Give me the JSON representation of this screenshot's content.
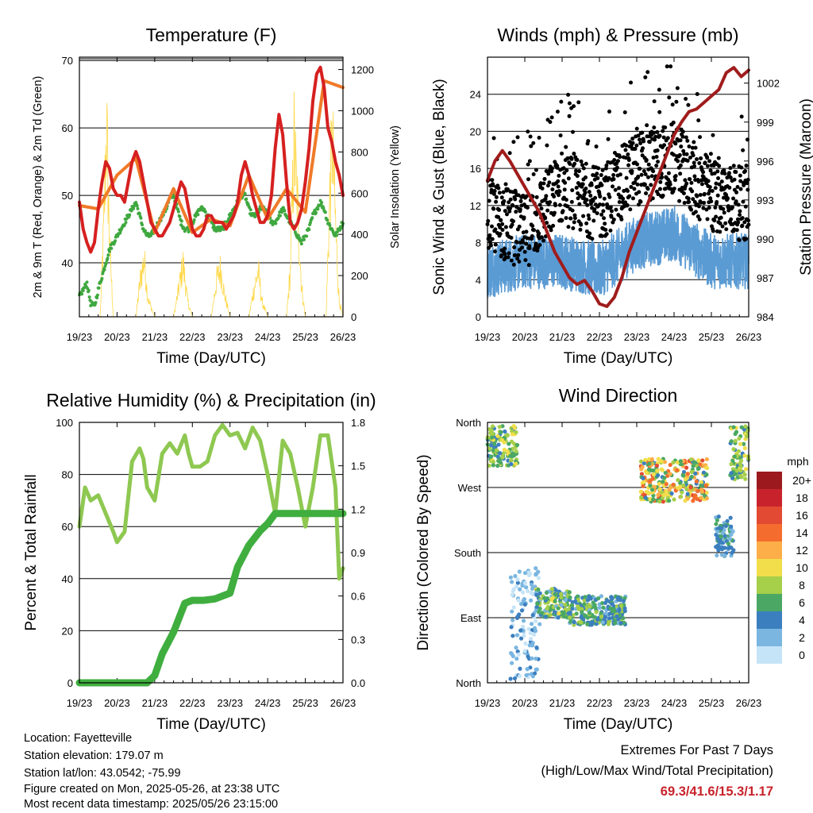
{
  "colors": {
    "temp2m": "#d62020",
    "temp9m": "#f07a28",
    "dewpoint": "#3fa83f",
    "solar": "#ffd84a",
    "wind": "#5a9bd4",
    "gust": "#000000",
    "pressure": "#a01c1c",
    "rh": "#8ec851",
    "precip": "#3fae3f",
    "extremes": "#c8232c"
  },
  "x_ticks": [
    "19/23",
    "20/23",
    "21/23",
    "22/23",
    "23/23",
    "24/23",
    "25/23",
    "26/23"
  ],
  "chart_data": [
    {
      "type": "line",
      "title": "Temperature (F)",
      "xlabel": "Time (Day/UTC)",
      "ylabel": "2m & 9m T (Red, Orange) & 2m Td (Green)",
      "ylabel_right": "Solar Insolation (Yellow)",
      "ylim": [
        32,
        70.5
      ],
      "yticks": [
        "40",
        "50",
        "60",
        "70"
      ],
      "y2lim": [
        0,
        1260
      ],
      "y2ticks": [
        "0",
        "200",
        "400",
        "600",
        "800",
        "1000",
        "1200"
      ],
      "series": [
        {
          "key": "temp2m",
          "x": [
            0,
            0.1,
            0.2,
            0.3,
            0.4,
            0.5,
            0.6,
            0.7,
            0.8,
            0.9,
            1,
            1.1,
            1.2,
            1.3,
            1.4,
            1.5,
            1.6,
            1.7,
            1.8,
            1.9,
            2,
            2.1,
            2.2,
            2.3,
            2.4,
            2.5,
            2.6,
            2.7,
            2.8,
            2.9,
            3,
            3.1,
            3.2,
            3.3,
            3.4,
            3.5,
            3.6,
            3.7,
            3.8,
            3.9,
            4,
            4.1,
            4.2,
            4.3,
            4.4,
            4.5,
            4.6,
            4.7,
            4.8,
            4.9,
            5,
            5.1,
            5.2,
            5.3,
            5.4,
            5.5,
            5.6,
            5.7,
            5.8,
            5.9,
            6,
            6.1,
            6.2,
            6.3,
            6.4,
            6.5,
            6.6,
            6.7,
            6.8,
            6.9,
            7
          ],
          "y": [
            49,
            45,
            43,
            41.6,
            43,
            48,
            52,
            55,
            54,
            51,
            50,
            50,
            49,
            52,
            55,
            56.5,
            55,
            52,
            49,
            46,
            45,
            44,
            44,
            45,
            46,
            48,
            50,
            52,
            51,
            48,
            45,
            44,
            44,
            45,
            47,
            47,
            46,
            46,
            46,
            45,
            46,
            47,
            49,
            53,
            55,
            53,
            50,
            48,
            46,
            46,
            47,
            50,
            57,
            62,
            59,
            52,
            46,
            45,
            46,
            48,
            52,
            57,
            64,
            68,
            69,
            66,
            60,
            58,
            55,
            53,
            50
          ]
        },
        {
          "key": "temp9m",
          "x": [
            0,
            0.5,
            1,
            1.5,
            2,
            2.5,
            3,
            3.5,
            4,
            4.5,
            5,
            5.5,
            6,
            6.5,
            7
          ],
          "y": [
            48.5,
            48,
            53,
            55.5,
            44.5,
            51,
            44.5,
            46.5,
            45.5,
            53,
            46.5,
            51,
            47.5,
            67,
            66
          ]
        },
        {
          "key": "dewpoint",
          "x": [
            0,
            0.2,
            0.3,
            0.4,
            0.5,
            0.6,
            0.7,
            0.8,
            0.9,
            1,
            1.1,
            1.2,
            1.3,
            1.4,
            1.5,
            1.6,
            1.7,
            1.8,
            1.9,
            2,
            2.1,
            2.2,
            2.3,
            2.4,
            2.5,
            2.6,
            2.7,
            2.8,
            2.9,
            3,
            3.1,
            3.2,
            3.3,
            3.4,
            3.5,
            3.6,
            3.7,
            3.8,
            3.9,
            4,
            4.1,
            4.2,
            4.3,
            4.4,
            4.5,
            4.6,
            4.7,
            4.8,
            4.9,
            5,
            5.1,
            5.2,
            5.3,
            5.4,
            5.5,
            5.6,
            5.7,
            5.8,
            5.9,
            6,
            6.1,
            6.2,
            6.3,
            6.4,
            6.5,
            6.6,
            6.7,
            6.8,
            6.9,
            7
          ],
          "y": [
            35,
            37,
            34,
            33.5,
            36,
            38,
            40,
            42,
            43,
            44,
            45,
            46,
            47,
            48,
            49,
            47,
            45,
            44,
            44,
            45,
            46,
            47,
            48,
            49.5,
            50,
            48,
            46,
            45,
            45,
            46,
            47,
            48,
            48,
            47,
            46,
            45,
            45,
            45,
            46,
            47,
            48,
            49,
            50,
            50,
            48,
            47,
            47,
            48,
            48,
            47,
            46,
            46,
            47,
            48,
            47,
            46,
            45,
            44,
            43,
            44,
            45,
            47,
            48,
            49,
            48,
            46,
            45,
            44,
            45,
            46
          ]
        },
        {
          "key": "solar",
          "x": [
            0,
            0.55,
            0.65,
            0.72,
            0.8,
            0.9,
            1,
            1.5,
            1.62,
            1.72,
            1.82,
            2,
            2.5,
            2.65,
            2.75,
            2.88,
            3,
            3.5,
            3.65,
            3.75,
            3.85,
            4,
            4.5,
            4.65,
            4.75,
            4.85,
            5,
            5.5,
            5.6,
            5.7,
            5.78,
            5.9,
            6,
            6.55,
            6.65,
            6.72,
            6.82,
            6.9,
            7
          ],
          "y": [
            0,
            0,
            600,
            1270,
            500,
            0,
            0,
            0,
            250,
            380,
            120,
            0,
            0,
            200,
            350,
            100,
            0,
            0,
            250,
            320,
            150,
            0,
            0,
            200,
            300,
            100,
            0,
            0,
            300,
            1150,
            800,
            200,
            0,
            0,
            800,
            1170,
            500,
            100,
            0
          ]
        }
      ]
    },
    {
      "type": "scatter",
      "title": "Winds (mph) & Pressure (mb)",
      "xlabel": "Time (Day/UTC)",
      "ylabel": "Sonic Wind & Gust (Blue, Black)",
      "ylabel_right": "Station Pressure (Maroon)",
      "ylim": [
        0,
        28
      ],
      "yticks": [
        "0",
        "4",
        "8",
        "12",
        "16",
        "20",
        "24"
      ],
      "y2lim": [
        984,
        1004
      ],
      "y2ticks": [
        "984",
        "987",
        "990",
        "993",
        "996",
        "999",
        "1002"
      ],
      "series": [
        {
          "key": "wind_band",
          "x": [
            0,
            1,
            2,
            3,
            4,
            5,
            6,
            7
          ],
          "y": [
            5,
            6,
            6,
            5,
            8,
            9,
            6,
            6
          ]
        },
        {
          "key": "gust_band",
          "x": [
            0,
            1,
            2,
            3,
            4,
            5,
            6,
            7
          ],
          "y": [
            11,
            9,
            14,
            12,
            16,
            17,
            13,
            12
          ]
        },
        {
          "key": "pressure",
          "x": [
            0,
            0.2,
            0.4,
            0.6,
            0.8,
            1,
            1.2,
            1.4,
            1.6,
            1.8,
            2,
            2.2,
            2.4,
            2.6,
            2.8,
            3,
            3.2,
            3.4,
            3.6,
            3.8,
            4,
            4.2,
            4.4,
            4.6,
            4.8,
            5,
            5.2,
            5.4,
            5.6,
            5.8,
            6,
            6.2,
            6.4,
            6.6,
            6.8,
            7
          ],
          "y": [
            994.5,
            996,
            996.8,
            996,
            995,
            994,
            993,
            992,
            990.5,
            989,
            988,
            987,
            986.5,
            986.8,
            986,
            985,
            984.8,
            985.5,
            987,
            989,
            990.5,
            992,
            993.5,
            995,
            996.5,
            998,
            999,
            999.8,
            1000,
            1000.5,
            1001,
            1001.5,
            1002.8,
            1003.2,
            1002.5,
            1003
          ]
        }
      ]
    },
    {
      "type": "line",
      "title": "Relative Humidity (%) & Precipitation (in)",
      "xlabel": "Time (Day/UTC)",
      "ylabel": "Percent & Total Rainfall",
      "ylim": [
        0,
        100
      ],
      "yticks": [
        "0",
        "20",
        "40",
        "60",
        "80",
        "100"
      ],
      "y2lim": [
        0,
        1.8
      ],
      "y2ticks": [
        "0.0",
        "0.3",
        "0.6",
        "0.9",
        "1.2",
        "1.5",
        "1.8"
      ],
      "series": [
        {
          "key": "rh",
          "x": [
            0,
            0.15,
            0.3,
            0.5,
            0.7,
            0.9,
            1,
            1.2,
            1.4,
            1.6,
            1.7,
            1.8,
            2,
            2.2,
            2.4,
            2.6,
            2.8,
            2.9,
            3,
            3.2,
            3.4,
            3.6,
            3.8,
            4,
            4.2,
            4.4,
            4.6,
            4.8,
            5,
            5.2,
            5.4,
            5.6,
            5.8,
            6,
            6.2,
            6.4,
            6.6,
            6.8,
            6.9,
            7
          ],
          "y": [
            60,
            75,
            70,
            72,
            65,
            58,
            54,
            58,
            85,
            90,
            86,
            75,
            70,
            88,
            92,
            88,
            95,
            88,
            83,
            83,
            85,
            95,
            99,
            95,
            96,
            90,
            98,
            93,
            80,
            65,
            93,
            88,
            75,
            60,
            75,
            95,
            95,
            75,
            40,
            44
          ]
        },
        {
          "key": "precip",
          "x": [
            0,
            1,
            1.8,
            2,
            2.2,
            2.5,
            2.8,
            3,
            3.3,
            3.6,
            4,
            4.2,
            4.5,
            4.8,
            5,
            5.2,
            5.4,
            6,
            7
          ],
          "y": [
            0,
            0,
            0,
            0.05,
            0.2,
            0.35,
            0.55,
            0.57,
            0.57,
            0.58,
            0.62,
            0.8,
            0.95,
            1.05,
            1.1,
            1.17,
            1.17,
            1.17,
            1.17
          ]
        }
      ]
    },
    {
      "type": "scatter",
      "title": "Wind Direction",
      "xlabel": "Time (Day/UTC)",
      "ylabel": "Direction (Colored By Speed)",
      "yticks": [
        "North",
        "East",
        "South",
        "West",
        "North"
      ],
      "ylim": [
        0,
        360
      ],
      "legend_title": "mph",
      "legend": [
        "20+",
        "18",
        "16",
        "14",
        "12",
        "10",
        "8",
        "6",
        "4",
        "2",
        "0"
      ],
      "legend_colors": [
        "#9c1a1e",
        "#c8232c",
        "#e34a33",
        "#f46d2e",
        "#fdae48",
        "#f2de4a",
        "#a6cf4a",
        "#4aa864",
        "#3c7fbf",
        "#7ab6e0",
        "#c6e4f7"
      ],
      "clusters": [
        {
          "x": [
            0,
            0.8
          ],
          "y": [
            300,
            355
          ],
          "speed": [
            4,
            10
          ]
        },
        {
          "x": [
            0.6,
            1.4
          ],
          "y": [
            5,
            160
          ],
          "speed": [
            0,
            4
          ]
        },
        {
          "x": [
            1.3,
            2.2
          ],
          "y": [
            90,
            130
          ],
          "speed": [
            2,
            10
          ]
        },
        {
          "x": [
            2.2,
            3.7
          ],
          "y": [
            80,
            120
          ],
          "speed": [
            2,
            8
          ]
        },
        {
          "x": [
            4.1,
            5.9
          ],
          "y": [
            250,
            310
          ],
          "speed": [
            4,
            16
          ]
        },
        {
          "x": [
            6.1,
            6.6
          ],
          "y": [
            175,
            230
          ],
          "speed": [
            2,
            6
          ]
        },
        {
          "x": [
            6.5,
            7
          ],
          "y": [
            280,
            355
          ],
          "speed": [
            4,
            10
          ]
        }
      ]
    }
  ],
  "info": {
    "location": "Location: Fayetteville",
    "elevation": "Station elevation: 179.07 m",
    "latlon": "Station lat/lon: 43.0542; -75.99",
    "created": "Figure created on Mon, 2025-05-26, at 23:38 UTC",
    "recent": "Most recent data timestamp: 2025/05/26 23:15:00"
  },
  "extremes": {
    "title": "Extremes For Past 7 Days",
    "subtitle": "(High/Low/Max Wind/Total Precipitation)",
    "values": "69.3/41.6/15.3/1.17"
  }
}
